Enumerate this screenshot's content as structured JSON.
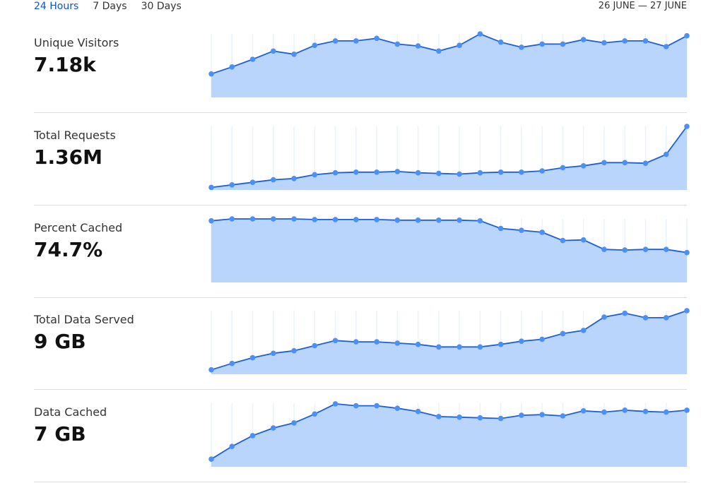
{
  "tabs": [
    {
      "label": "24 Hours",
      "active": true
    },
    {
      "label": "7 Days",
      "active": false
    },
    {
      "label": "30 Days",
      "active": false
    }
  ],
  "date_range": "26 JUNE — 27 JUNE",
  "colors": {
    "accent": "#0a55d4",
    "line": "#1d5fd6",
    "fill": "#b9d5fc",
    "point": "#4a90f7",
    "grid": "#eaf2fe"
  },
  "metrics": [
    {
      "label": "Unique Visitors",
      "value": "7.18k"
    },
    {
      "label": "Total Requests",
      "value": "1.36M"
    },
    {
      "label": "Percent Cached",
      "value": "74.7%"
    },
    {
      "label": "Total Data Served",
      "value": "9 GB"
    },
    {
      "label": "Data Cached",
      "value": "7 GB"
    }
  ],
  "chart_data": [
    {
      "type": "area",
      "name": "Unique Visitors",
      "ylim": [
        0,
        100
      ],
      "values": [
        37,
        48,
        60,
        73,
        68,
        82,
        89,
        89,
        93,
        84,
        81,
        73,
        82,
        100,
        87,
        79,
        84,
        84,
        91,
        86,
        89,
        89,
        80,
        97
      ]
    },
    {
      "type": "area",
      "name": "Total Requests",
      "ylim": [
        0,
        100
      ],
      "values": [
        4,
        8,
        12,
        16,
        18,
        24,
        27,
        28,
        28,
        29,
        27,
        26,
        25,
        27,
        28,
        28,
        30,
        35,
        38,
        43,
        43,
        42,
        56,
        100
      ]
    },
    {
      "type": "area",
      "name": "Percent Cached",
      "ylim": [
        0,
        100
      ],
      "values": [
        97,
        100,
        100,
        100,
        100,
        99,
        99,
        99,
        99,
        98,
        98,
        98,
        98,
        97,
        85,
        82,
        79,
        66,
        67,
        52,
        51,
        52,
        52,
        47
      ]
    },
    {
      "type": "area",
      "name": "Total Data Served",
      "ylim": [
        0,
        100
      ],
      "values": [
        7,
        17,
        26,
        33,
        37,
        45,
        53,
        51,
        51,
        49,
        47,
        43,
        43,
        43,
        47,
        52,
        55,
        64,
        69,
        90,
        96,
        89,
        89,
        100
      ]
    },
    {
      "type": "area",
      "name": "Data Cached",
      "ylim": [
        0,
        100
      ],
      "values": [
        12,
        32,
        49,
        61,
        69,
        83,
        99,
        96,
        96,
        92,
        87,
        79,
        78,
        77,
        76,
        81,
        82,
        80,
        88,
        86,
        89,
        87,
        86,
        89
      ]
    }
  ]
}
